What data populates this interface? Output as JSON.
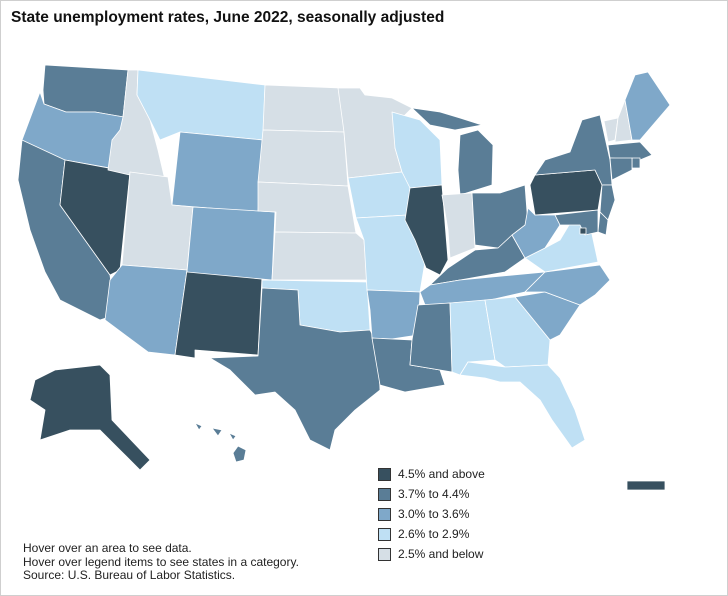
{
  "title": "State unemployment rates, June 2022, seasonally adjusted",
  "legend": [
    {
      "label": "4.5% and above",
      "color": "#37505f"
    },
    {
      "label": "3.7% to 4.4%",
      "color": "#5a7d96"
    },
    {
      "label": "3.0% to 3.6%",
      "color": "#7fa8c9"
    },
    {
      "label": "2.6% to 2.9%",
      "color": "#bfe0f4"
    },
    {
      "label": "2.5% and below",
      "color": "#d6dfe6"
    }
  ],
  "notes": {
    "hover_area": "Hover over an area to see data.",
    "hover_legend": "Hover over legend items to see states in a category.",
    "source": "Source: U.S. Bureau of Labor Statistics."
  },
  "states": {
    "WA": 4,
    "OR": 3,
    "CA": 4,
    "NV": 5,
    "ID": 1,
    "MT": 2,
    "WY": 3,
    "UT": 1,
    "AZ": 3,
    "NM": 5,
    "CO": 3,
    "ND": 1,
    "SD": 1,
    "NE": 1,
    "KS": 1,
    "OK": 2,
    "TX": 4,
    "MN": 1,
    "IA": 2,
    "MO": 2,
    "AR": 3,
    "LA": 4,
    "WI": 2,
    "IL": 5,
    "MI": 4,
    "IN": 1,
    "OH": 4,
    "KY": 4,
    "TN": 3,
    "MS": 4,
    "AL": 2,
    "GA": 2,
    "FL": 2,
    "SC": 3,
    "NC": 3,
    "VA": 2,
    "WV": 3,
    "PA": 5,
    "NY": 4,
    "ME": 3,
    "VT": 1,
    "NH": 1,
    "MA": 4,
    "RI": 4,
    "CT": 4,
    "NJ": 4,
    "DE": 4,
    "MD": 4,
    "DC": 5,
    "AK": 5,
    "HI": 4,
    "PR": 5
  }
}
